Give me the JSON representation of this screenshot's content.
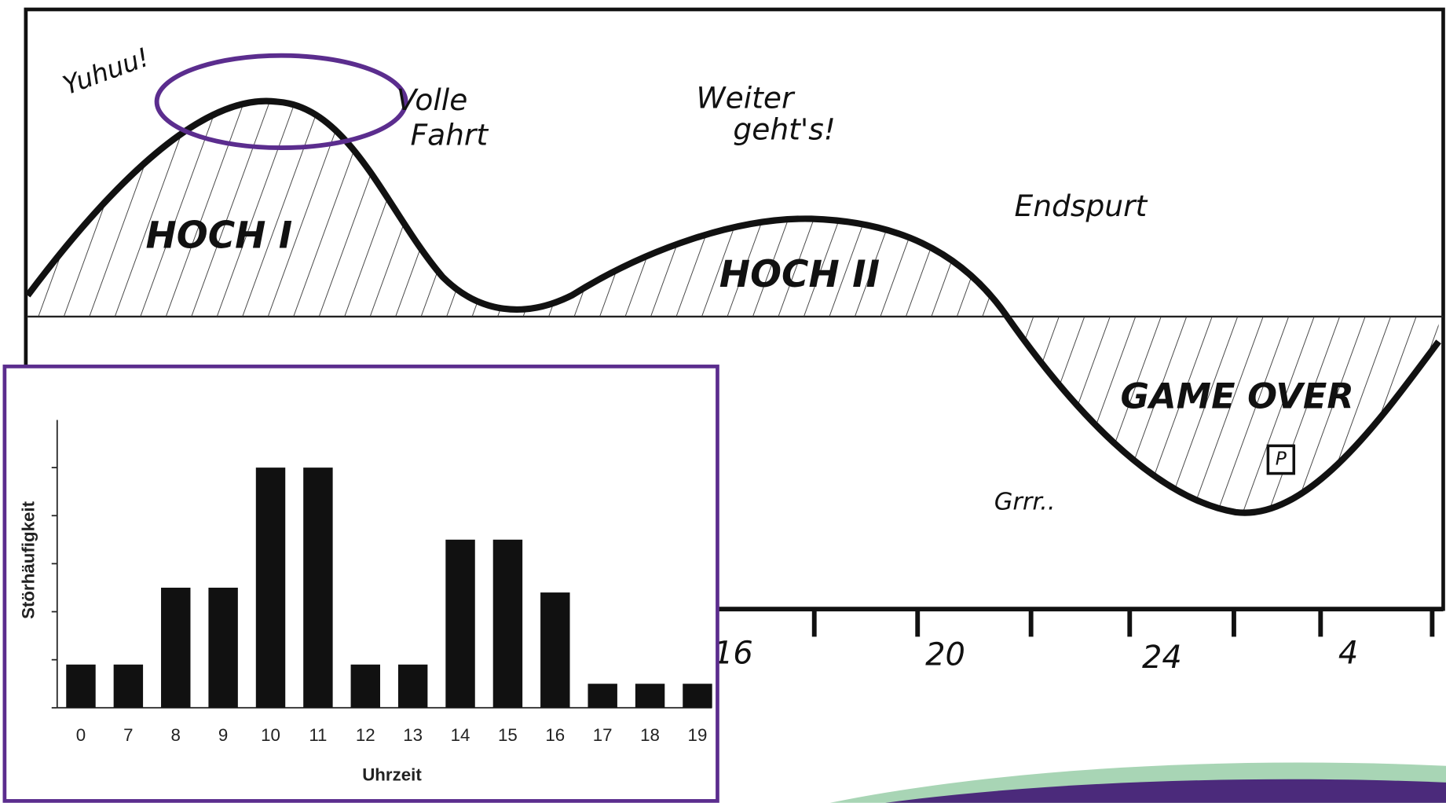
{
  "sketch": {
    "labels": [
      "Yuhuu!",
      "Volle",
      "Fahrt",
      "Weiter",
      "geht's!",
      "Endspurt",
      "HOCH I",
      "HOCH II",
      "GAME OVER",
      "Grrr..",
      "P"
    ],
    "hours": [
      "16",
      "20",
      "24",
      "4"
    ]
  },
  "chart_data": {
    "type": "bar",
    "x_label": "Uhrzeit",
    "y_label": "Störhäufigkeit",
    "categories": [
      "0",
      "7",
      "8",
      "9",
      "10",
      "11",
      "12",
      "13",
      "14",
      "15",
      "16",
      "17",
      "18",
      "19"
    ],
    "values": [
      0.9,
      0.9,
      2.5,
      2.5,
      5,
      5,
      0.9,
      0.9,
      3.5,
      3.5,
      2.4,
      0.5,
      0.5,
      0.5
    ],
    "color": "#111111",
    "ylim": [
      0,
      5.8
    ],
    "yticks": [
      0,
      1,
      2,
      3,
      4,
      5
    ]
  }
}
